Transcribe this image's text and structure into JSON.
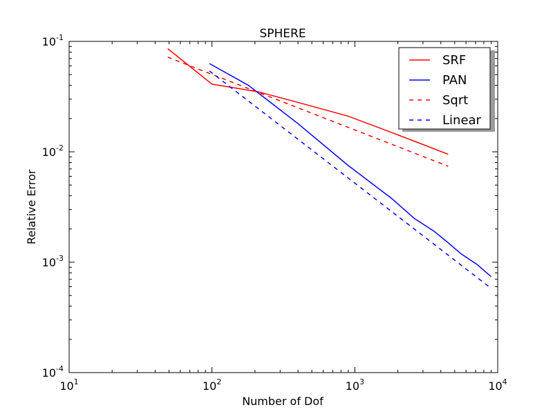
{
  "chart_data": {
    "type": "line",
    "title": "SPHERE",
    "xlabel": "Number of Dof",
    "ylabel": "Relative Error",
    "xscale": "log",
    "yscale": "log",
    "xlim": [
      10,
      10000
    ],
    "ylim": [
      0.0001,
      0.1
    ],
    "grid": false,
    "legend_position": "top-right",
    "x_ticks": [
      {
        "value": 10,
        "base": "10",
        "exp": "1"
      },
      {
        "value": 100,
        "base": "10",
        "exp": "2"
      },
      {
        "value": 1000,
        "base": "10",
        "exp": "3"
      },
      {
        "value": 10000,
        "base": "10",
        "exp": "4"
      }
    ],
    "y_ticks": [
      {
        "value": 0.0001,
        "base": "10",
        "exp": "-4"
      },
      {
        "value": 0.001,
        "base": "10",
        "exp": "-3"
      },
      {
        "value": 0.01,
        "base": "10",
        "exp": "-2"
      },
      {
        "value": 0.1,
        "base": "10",
        "exp": "-1"
      }
    ],
    "series": [
      {
        "name": "SRF",
        "color": "#ff0000",
        "dashed": false,
        "x": [
          49,
          100,
          210,
          400,
          900,
          1800,
          2600,
          4500
        ],
        "y": [
          0.086,
          0.041,
          0.035,
          0.028,
          0.021,
          0.015,
          0.0125,
          0.0095
        ]
      },
      {
        "name": "PAN",
        "color": "#0000ff",
        "dashed": false,
        "x": [
          96,
          180,
          400,
          900,
          1800,
          2600,
          3600,
          4500,
          5500,
          7200,
          9000
        ],
        "y": [
          0.063,
          0.04,
          0.018,
          0.0075,
          0.0038,
          0.0025,
          0.0019,
          0.0015,
          0.0012,
          0.00095,
          0.00074
        ]
      },
      {
        "name": "Sqrt",
        "color": "#ff0000",
        "dashed": true,
        "x": [
          49,
          4500
        ],
        "y": [
          0.072,
          0.0074
        ]
      },
      {
        "name": "Linear",
        "color": "#0000ff",
        "dashed": true,
        "x": [
          96,
          9000
        ],
        "y": [
          0.054,
          0.00058
        ]
      }
    ]
  }
}
